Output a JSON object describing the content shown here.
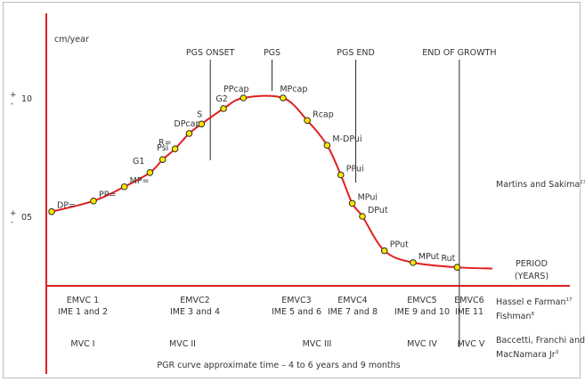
{
  "chart_data": {
    "type": "line",
    "y_unit_label": "cm/year",
    "y_ticks": [
      {
        "value": 10,
        "label": "10",
        "marker_plus": "+",
        "marker_minus": "-"
      },
      {
        "value": 5,
        "label": "05",
        "marker_plus": "+",
        "marker_minus": "-"
      }
    ],
    "x_label_line1": "PERIOD",
    "x_label_line2": "(YEARS)",
    "markers": [
      {
        "label": "PGS ONSET",
        "x": 0.36
      },
      {
        "label": "PGS",
        "x": 0.5
      },
      {
        "label": "PGS END",
        "x": 0.69
      },
      {
        "label": "END OF GROWTH",
        "x": 0.925
      }
    ],
    "points": [
      {
        "label": "DP=",
        "x": 0.0,
        "y": 5.2
      },
      {
        "label": "PP=",
        "x": 0.095,
        "y": 5.65
      },
      {
        "label": "MP=",
        "x": 0.165,
        "y": 6.25
      },
      {
        "label": "G1",
        "x": 0.223,
        "y": 6.85
      },
      {
        "label": "Psi",
        "x": 0.252,
        "y": 7.4
      },
      {
        "label": "R=",
        "x": 0.28,
        "y": 7.85
      },
      {
        "label": "DPcap",
        "x": 0.312,
        "y": 8.5
      },
      {
        "label": "S",
        "x": 0.34,
        "y": 8.9
      },
      {
        "label": "G2",
        "x": 0.39,
        "y": 9.55
      },
      {
        "label": "PPcap",
        "x": 0.435,
        "y": 10.0
      },
      {
        "label": "MPcap",
        "x": 0.525,
        "y": 10.0
      },
      {
        "label": "Rcap",
        "x": 0.58,
        "y": 9.05
      },
      {
        "label": "M-DPui",
        "x": 0.625,
        "y": 8.0
      },
      {
        "label": "PPui",
        "x": 0.656,
        "y": 6.75
      },
      {
        "label": "MPui",
        "x": 0.682,
        "y": 5.55
      },
      {
        "label": "DPut",
        "x": 0.705,
        "y": 5.0
      },
      {
        "label": "PPut",
        "x": 0.755,
        "y": 3.55
      },
      {
        "label": "MPut",
        "x": 0.82,
        "y": 3.05
      },
      {
        "label": "Rut",
        "x": 0.92,
        "y": 2.85
      }
    ],
    "stage_rows": [
      {
        "source": "Hassel e Farman",
        "source_sup": "17",
        "source2": "Fishman",
        "source2_sup": "8",
        "cells": [
          {
            "line1": "EMVC 1",
            "line2": "IME 1 and 2"
          },
          {
            "line1": "EMVC2",
            "line2": "IME 3 and 4"
          },
          {
            "line1": "EMVC3",
            "line2": "IME 5 and 6"
          },
          {
            "line1": "EMVC4",
            "line2": "IME 7 and 8"
          },
          {
            "line1": "EMVC5",
            "line2": "IME 9 and 10"
          },
          {
            "line1": "EMVC6",
            "line2": "IME 11"
          }
        ]
      },
      {
        "source": "Baccetti, Franchi and",
        "source2": "MacNamara Jr",
        "source2_sup": "3",
        "cells": [
          {
            "line1": "MVC I"
          },
          {
            "line1": "MVC II"
          },
          {
            "line1": "MVC III"
          },
          {
            "line1": "MVC IV"
          },
          {
            "line1": "MVC V"
          }
        ]
      }
    ],
    "top_source": "Martins and Sakima",
    "top_source_sup": "23",
    "footer": "PGR curve approximate time – 4 to 6 years and 9 months",
    "colors": {
      "curve": "#e02020",
      "axis": "#e02020",
      "point_fill": "#ffe600",
      "point_stroke": "#2b2b2b",
      "text": "#333333"
    }
  }
}
